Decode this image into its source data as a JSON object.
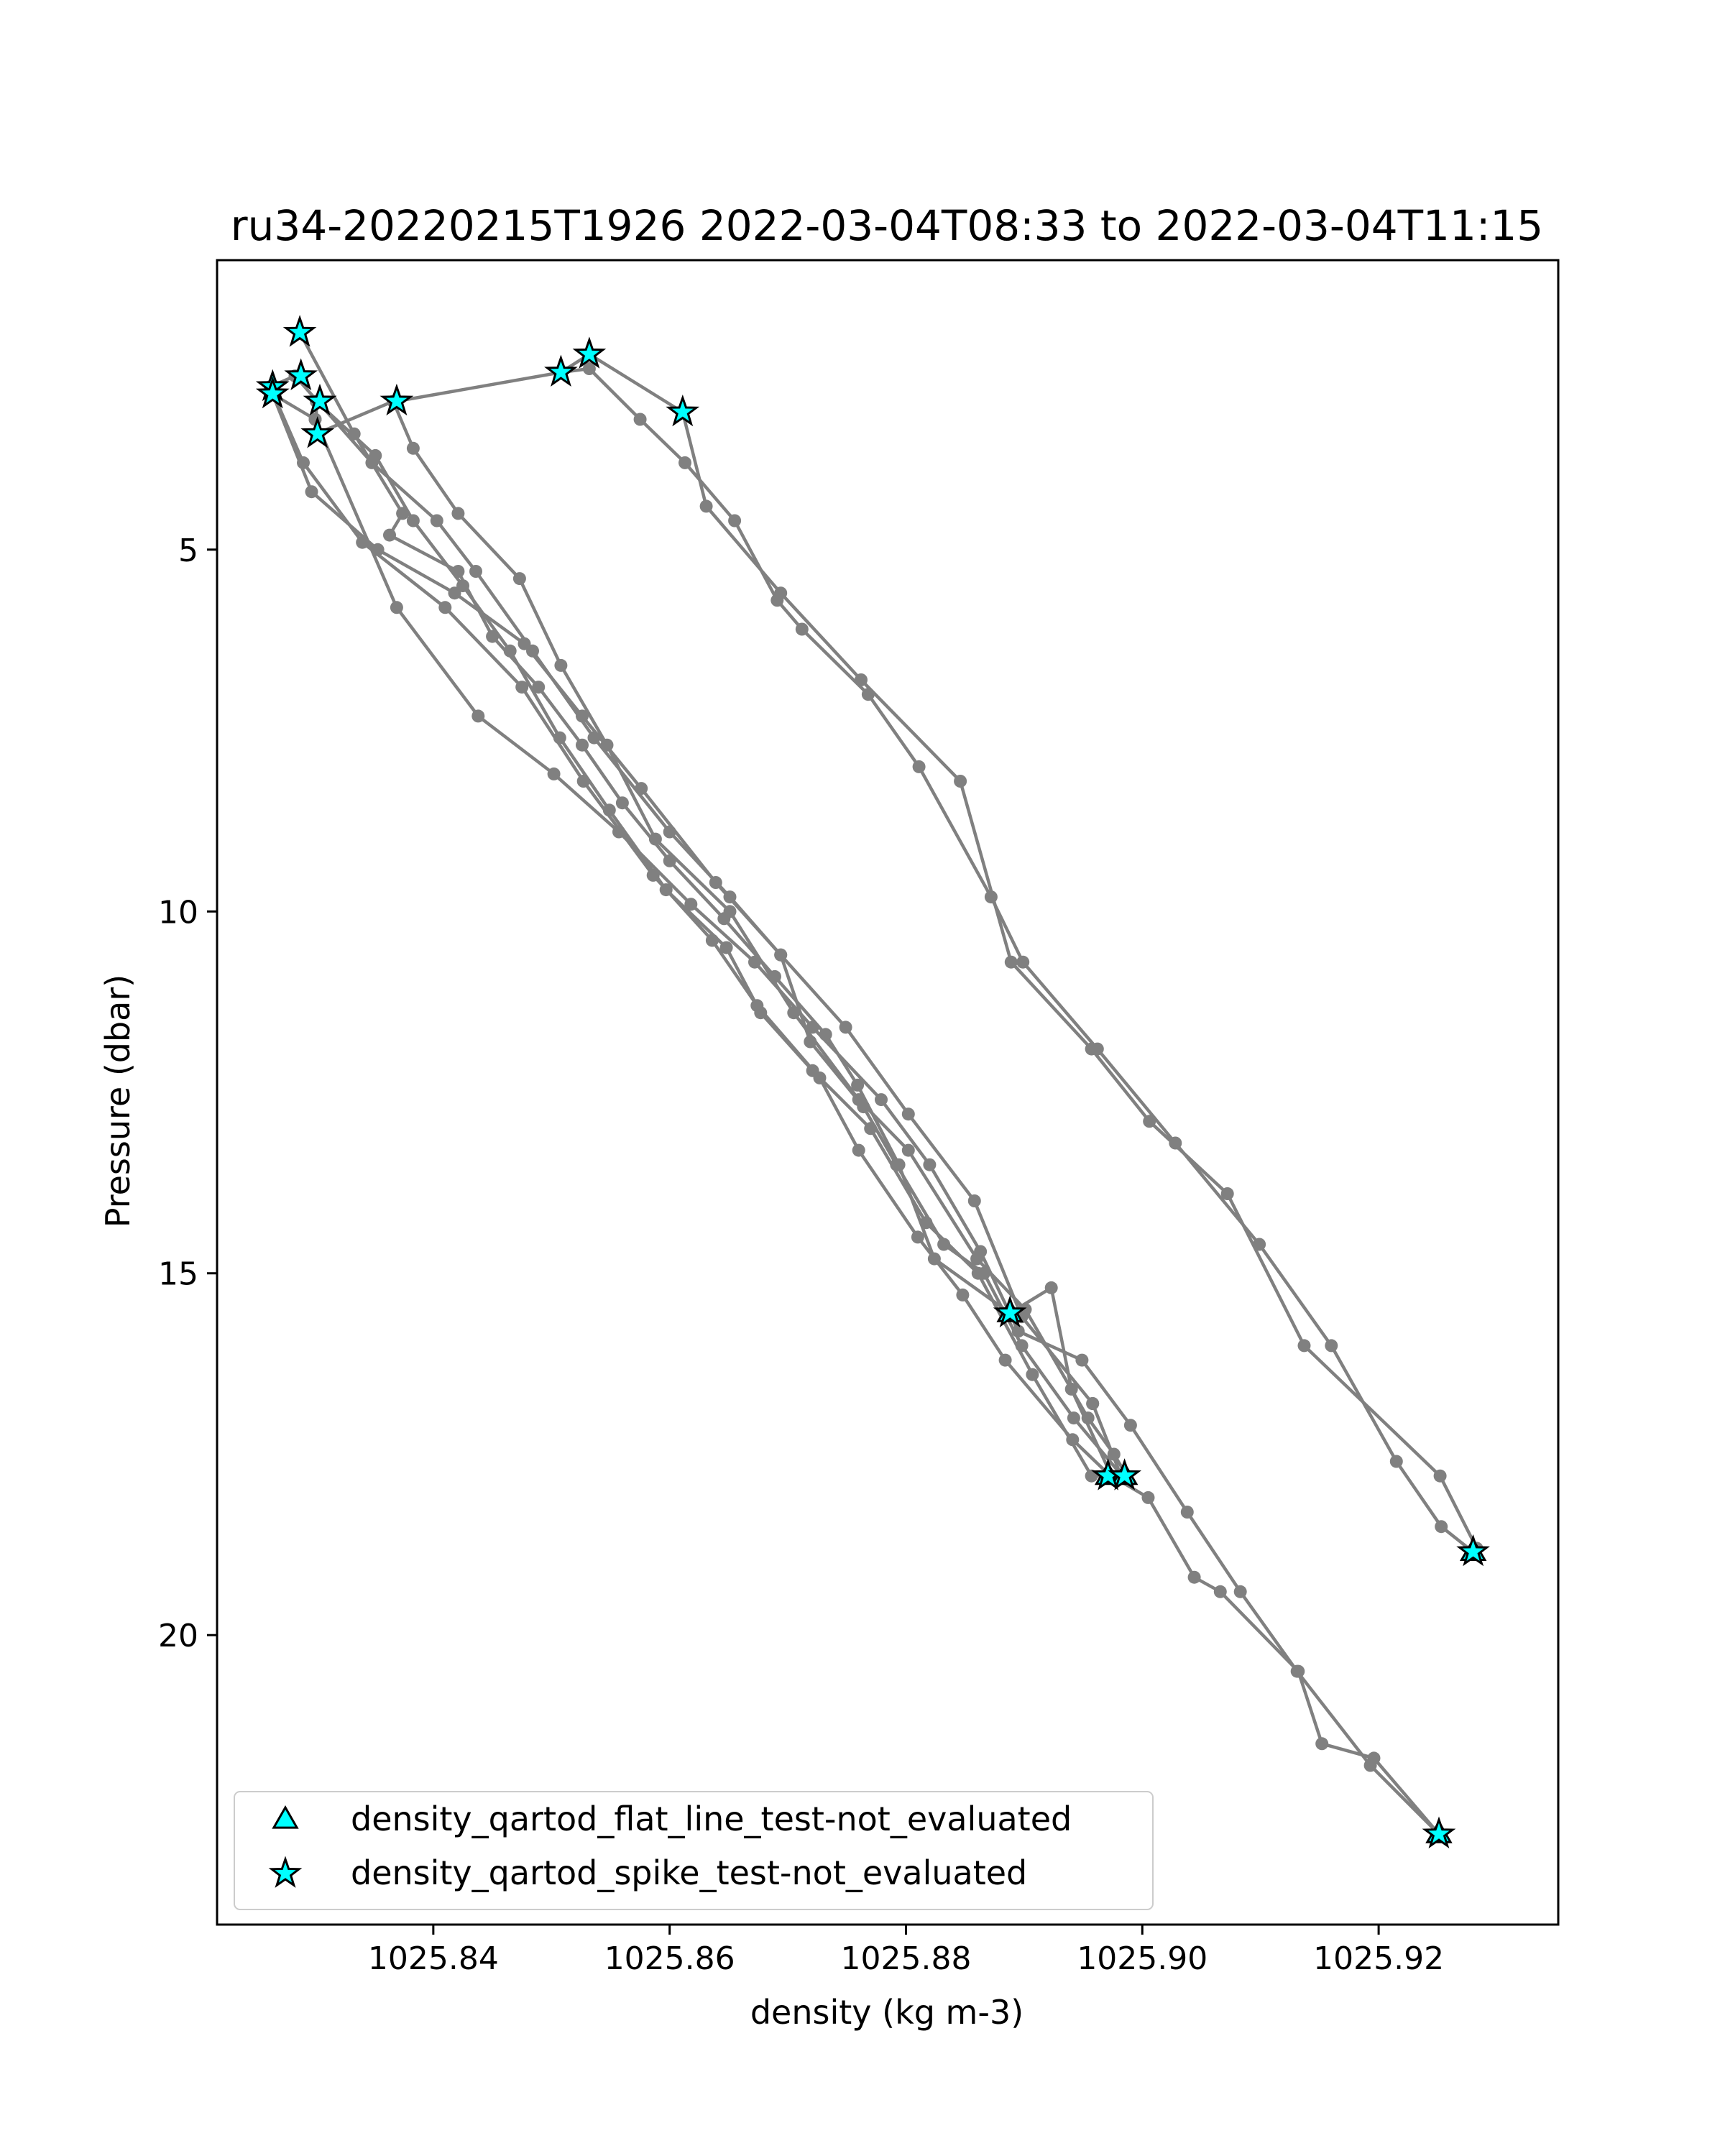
{
  "chart_data": {
    "type": "line",
    "title": "ru34-20220215T1926 2022-03-04T08:33 to 2022-03-04T11:15",
    "xlabel": "density (kg m-3)",
    "ylabel": "Pressure (dbar)",
    "xlim": [
      1025.8217,
      1025.9352
    ],
    "ylim": [
      24.0,
      1.0
    ],
    "y_inverted": true,
    "grid": false,
    "legend_position": "lower left",
    "x_ticks": [
      {
        "value": 1025.84,
        "label": "1025.84"
      },
      {
        "value": 1025.86,
        "label": "1025.86"
      },
      {
        "value": 1025.88,
        "label": "1025.88"
      },
      {
        "value": 1025.9,
        "label": "1025.90"
      },
      {
        "value": 1025.92,
        "label": "1025.92"
      }
    ],
    "y_ticks": [
      {
        "value": 5,
        "label": "5"
      },
      {
        "value": 10,
        "label": "10"
      },
      {
        "value": 15,
        "label": "15"
      },
      {
        "value": 20,
        "label": "20"
      }
    ],
    "colors": {
      "line": "#808080",
      "marker_fill": "#00ffff",
      "marker_edge": "#000000"
    },
    "series": [
      {
        "x": [
          1025.8287,
          1025.8333,
          1025.8374,
          1025.8363,
          1025.8421,
          1025.845,
          1025.8489,
          1025.8526,
          1025.856,
          1025.86,
          1025.8646,
          1025.8689,
          1025.8732,
          1025.8759,
          1025.8794,
          1025.8824,
          1025.8888
        ],
        "y": [
          2.0,
          3.4,
          4.5,
          4.8,
          5.3,
          6.2,
          6.9,
          7.7,
          8.5,
          9.3,
          10.1,
          10.9,
          11.7,
          12.4,
          13.5,
          14.8,
          15.55
        ]
      },
      {
        "x": [
          1025.8888,
          1025.8923,
          1025.894,
          1025.8974,
          1025.9005,
          1025.9044,
          1025.9066,
          1025.9132,
          1025.9152,
          1025.9196,
          1025.9251
        ],
        "y": [
          15.55,
          15.2,
          16.6,
          17.8,
          18.1,
          19.2,
          19.4,
          20.5,
          21.5,
          21.7,
          22.75
        ]
      },
      {
        "x": [
          1025.9251,
          1025.9193,
          1025.9131,
          1025.9083,
          1025.9038,
          1025.899,
          1025.8949,
          1025.8895,
          1025.8863,
          1025.882,
          1025.8779,
          1025.8721,
          1025.8672,
          1025.8618,
          1025.8557,
          1025.8502,
          1025.8438,
          1025.8369,
          1025.83
        ],
        "y": [
          22.75,
          21.8,
          20.5,
          19.4,
          18.3,
          17.1,
          16.2,
          15.8,
          14.7,
          13.5,
          12.6,
          11.6,
          10.7,
          9.9,
          8.9,
          8.1,
          7.3,
          5.8,
          3.2
        ]
      },
      {
        "x": [
          1025.83,
          1025.8264,
          1025.8297,
          1025.8353,
          1025.8418,
          1025.8477,
          1025.8526,
          1025.8576,
          1025.8639,
          1025.8694,
          1025.8749,
          1025.8802,
          1025.8858,
          1025.8898,
          1025.8958
        ],
        "y": [
          3.2,
          2.85,
          4.2,
          5.0,
          5.6,
          6.3,
          7.3,
          8.3,
          9.6,
          10.6,
          11.6,
          12.8,
          14.0,
          15.6,
          16.8
        ]
      },
      {
        "x": [
          1025.8958,
          1025.8982,
          1025.8973,
          1025.8941,
          1025.8884,
          1025.8848,
          1025.881,
          1025.876,
          1025.8727,
          1025.8674,
          1025.8636,
          1025.8586,
          1025.8527,
          1025.8475,
          1025.841,
          1025.834,
          1025.829,
          1025.8262
        ],
        "y": [
          16.8,
          17.8,
          17.8,
          17.3,
          16.2,
          15.3,
          14.5,
          13.3,
          12.3,
          11.3,
          10.4,
          9.5,
          8.2,
          6.9,
          5.8,
          4.9,
          3.8,
          2.75
        ]
      },
      {
        "x": [
          1025.8262,
          1025.8283,
          1025.8348,
          1025.8403,
          1025.8436,
          1025.8484,
          1025.8536,
          1025.86,
          1025.8651,
          1025.8694,
          1025.8719,
          1025.8764,
          1025.8792,
          1025.8832,
          1025.8866,
          1025.8898,
          1025.8942,
          1025.8983
        ],
        "y": [
          2.75,
          2.6,
          3.8,
          4.6,
          5.3,
          6.4,
          7.6,
          8.9,
          9.8,
          10.6,
          11.8,
          12.7,
          13.5,
          14.6,
          15.0,
          16.0,
          17.0,
          17.8
        ]
      },
      {
        "x": [
          1025.8983,
          1025.8957,
          1025.8907,
          1025.8861,
          1025.8817,
          1025.877,
          1025.8721,
          1025.8677,
          1025.8648,
          1025.8597,
          1025.8549,
          1025.8507,
          1025.8465,
          1025.8425,
          1025.8383,
          1025.8351,
          1025.8301
        ],
        "y": [
          17.8,
          17.8,
          16.4,
          15.0,
          14.3,
          13.0,
          12.2,
          11.4,
          10.5,
          9.7,
          8.6,
          7.6,
          6.4,
          5.5,
          4.6,
          3.7,
          2.95
        ]
      },
      {
        "x": [
          1025.8301,
          1025.8301,
          1025.8366,
          1025.8383,
          1025.8421,
          1025.8473,
          1025.8508,
          1025.8547,
          1025.8588,
          1025.8651,
          1025.8705,
          1025.876,
          1025.8802,
          1025.886,
          1025.8901,
          1025.8954,
          1025.8976,
          1025.8987
        ],
        "y": [
          2.95,
          3.4,
          2.95,
          3.6,
          4.5,
          5.4,
          6.6,
          7.7,
          9.0,
          10.0,
          11.4,
          12.6,
          13.3,
          14.8,
          15.5,
          17.0,
          17.5,
          17.8
        ]
      },
      {
        "x": [
          1025.8369,
          1025.8508,
          1025.8532,
          1025.8611,
          1025.8631,
          1025.8694,
          1025.8762,
          1025.8846,
          1025.8889,
          1025.8957,
          1025.9006,
          1025.9072,
          1025.9137,
          1025.9252,
          1025.9283,
          1025.928
        ],
        "y": [
          2.95,
          2.55,
          2.3,
          3.1,
          4.4,
          5.6,
          6.8,
          8.2,
          10.7,
          11.9,
          12.9,
          13.9,
          16.0,
          17.8,
          18.8,
          18.85
        ]
      },
      {
        "x": [
          1025.928,
          1025.9253,
          1025.9215,
          1025.916,
          1025.9099,
          1025.9028,
          1025.8962,
          1025.8899,
          1025.8872,
          1025.8811,
          1025.8768,
          1025.8712,
          1025.8691,
          1025.8655,
          1025.8613,
          1025.8575,
          1025.8532,
          1025.8508
        ],
        "y": [
          18.85,
          18.5,
          17.6,
          16.0,
          14.6,
          13.2,
          11.9,
          10.7,
          9.8,
          8.0,
          7.0,
          6.1,
          5.7,
          4.6,
          3.8,
          3.2,
          2.5,
          2.55
        ]
      }
    ],
    "star_markers": {
      "x": [
        1025.8287,
        1025.8264,
        1025.8264,
        1025.8288,
        1025.8304,
        1025.8302,
        1025.8369,
        1025.8508,
        1025.8532,
        1025.8611,
        1025.8888,
        1025.8971,
        1025.8985,
        1025.928,
        1025.9251
      ],
      "y": [
        2.0,
        2.75,
        2.85,
        2.6,
        2.95,
        3.4,
        2.95,
        2.55,
        2.3,
        3.1,
        15.55,
        17.8,
        17.8,
        18.85,
        22.75
      ]
    },
    "triangle_markers": {
      "x": [
        1025.8888,
        1025.8971,
        1025.8985,
        1025.928,
        1025.9251
      ],
      "y": [
        15.55,
        17.8,
        17.8,
        18.85,
        22.75
      ]
    },
    "legend": [
      {
        "marker": "triangle",
        "label": "density_qartod_flat_line_test-not_evaluated"
      },
      {
        "marker": "star",
        "label": "density_qartod_spike_test-not_evaluated"
      }
    ]
  }
}
